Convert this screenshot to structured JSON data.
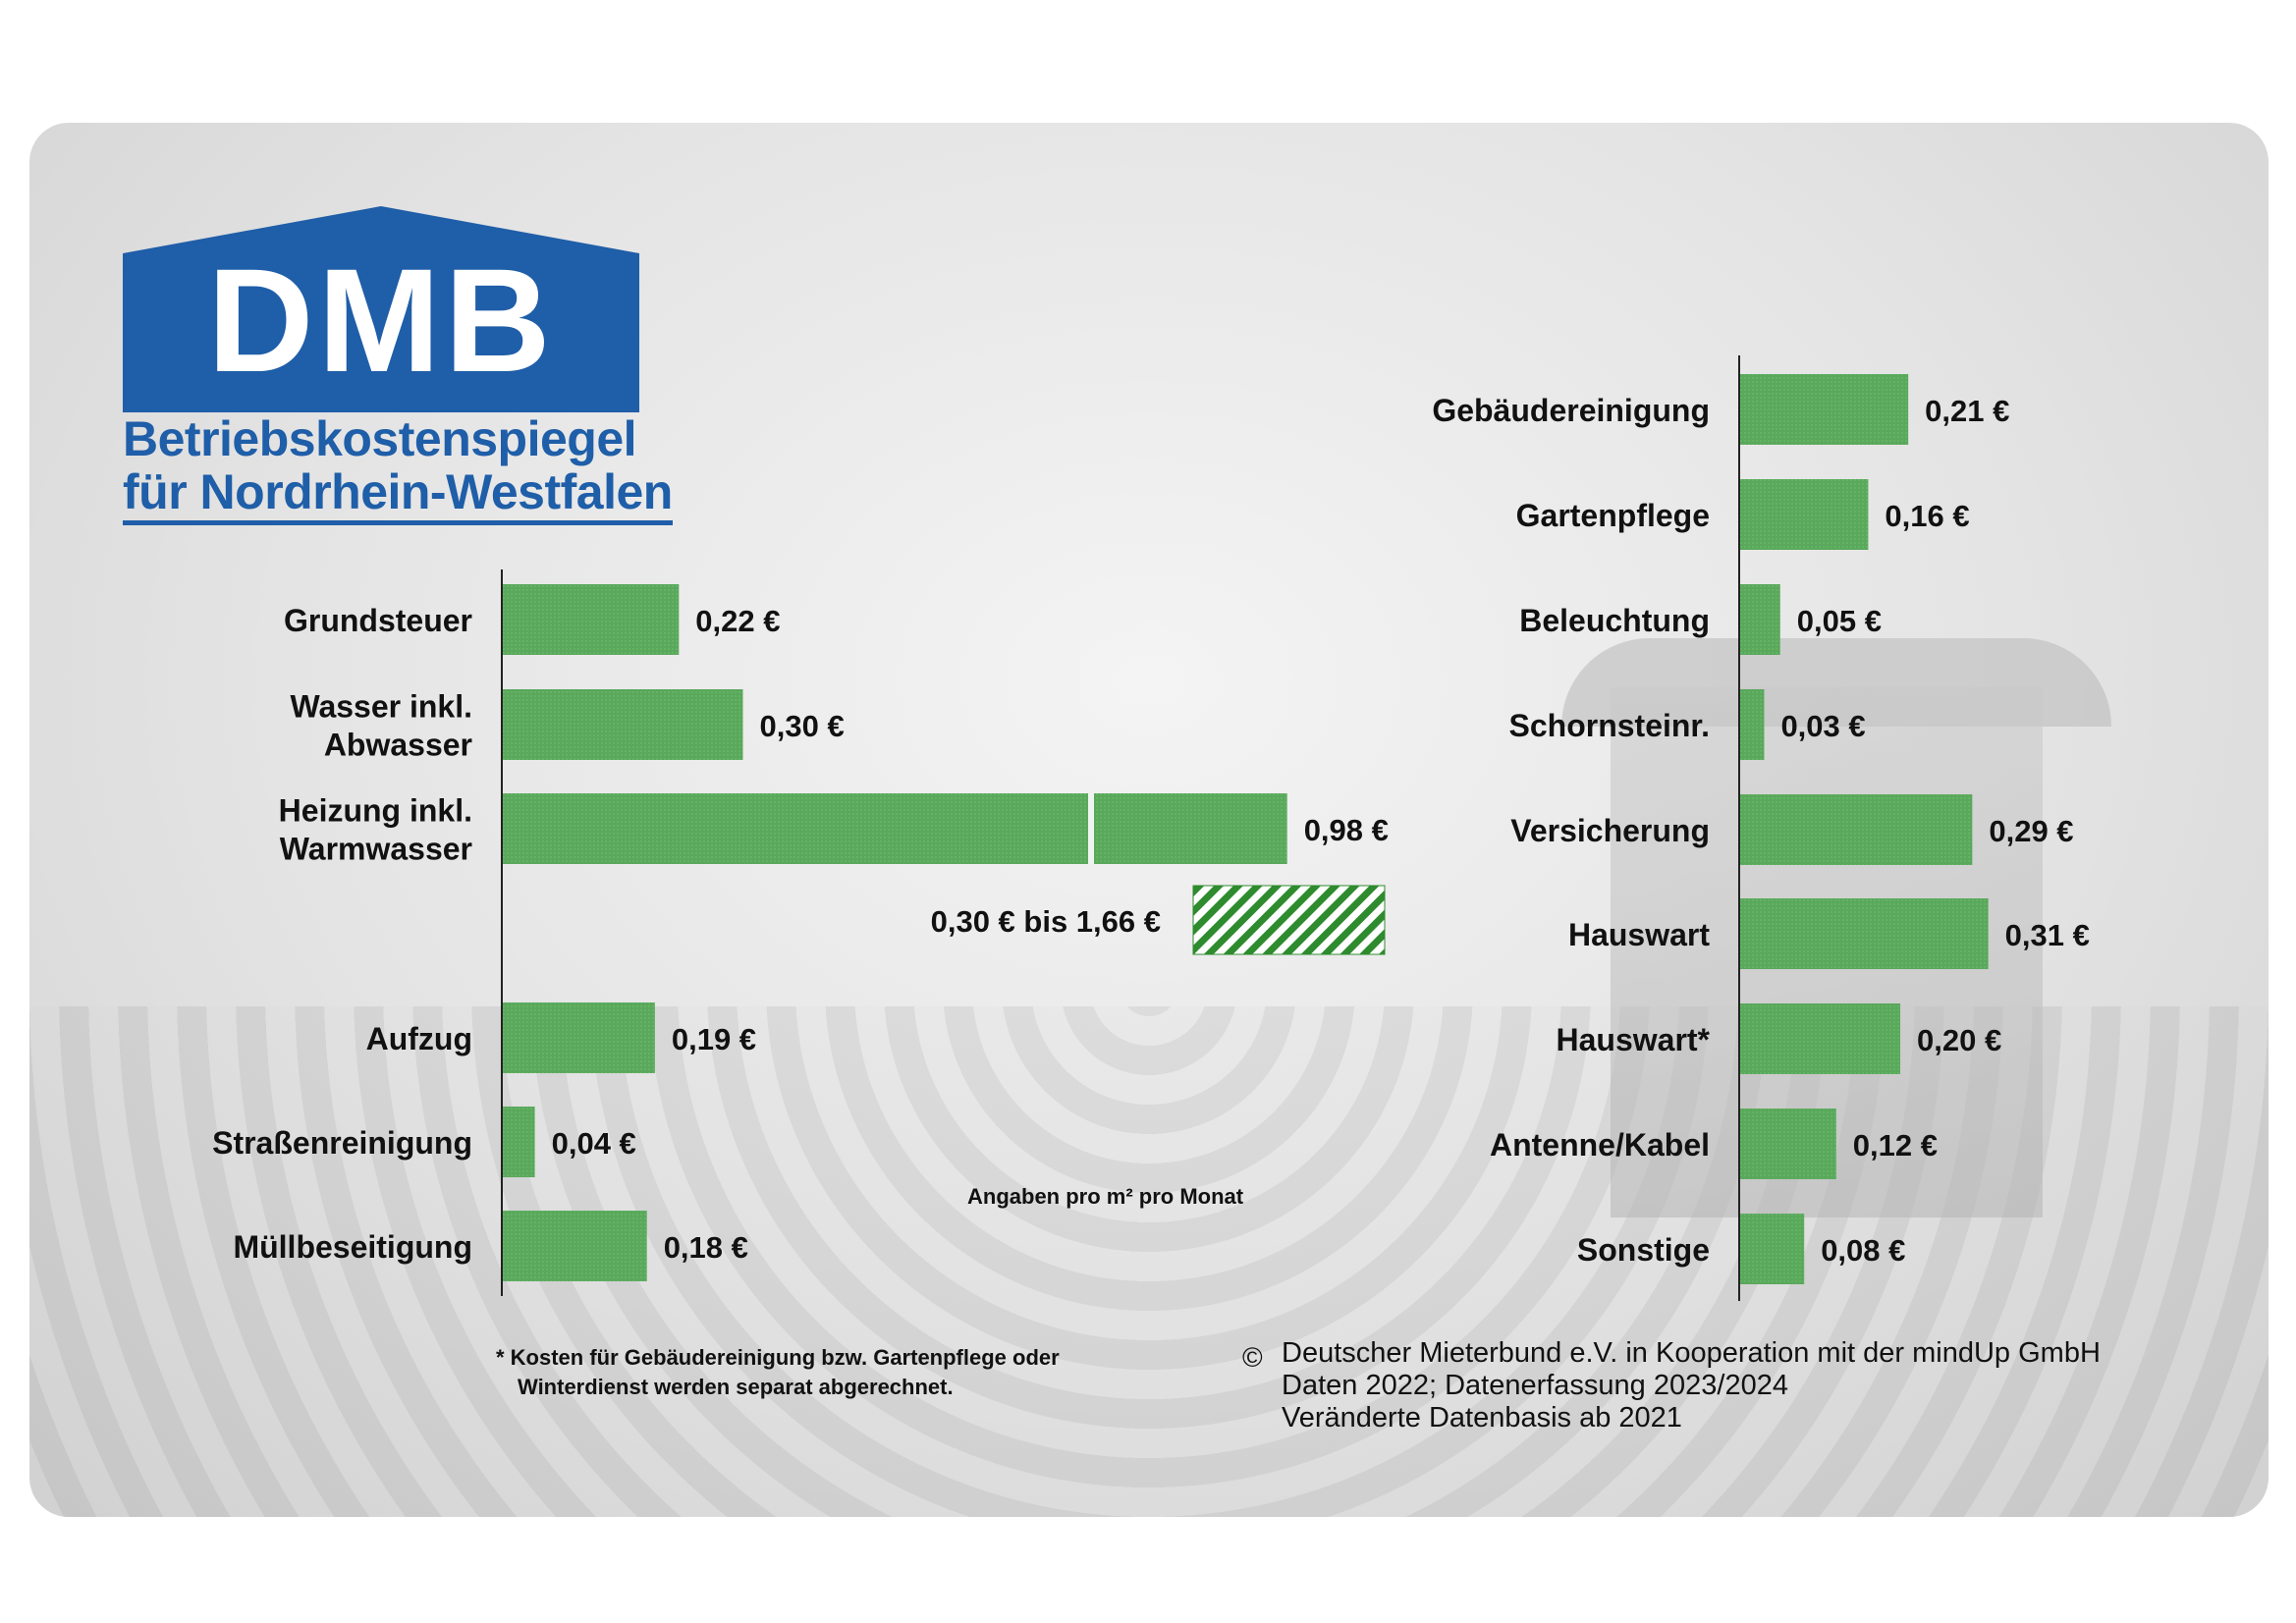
{
  "logo": {
    "wordmark": "DMB",
    "subtitle_line1": "Betriebskostenspiegel",
    "subtitle_line2": "für Nordrhein-Westfalen",
    "color": "#1f5ea8"
  },
  "chart_data": [
    {
      "type": "bar",
      "orientation": "horizontal",
      "panel": "left",
      "categories": [
        [
          "Grundsteuer"
        ],
        [
          "Wasser inkl.",
          "Abwasser"
        ],
        [
          "Heizung inkl.",
          "Warmwasser"
        ],
        [
          "Aufzug"
        ],
        [
          "Straßenreinigung"
        ],
        [
          "Müllbeseitigung"
        ]
      ],
      "values": [
        0.22,
        0.3,
        0.98,
        0.19,
        0.04,
        0.18
      ],
      "value_labels": [
        "0,22 €",
        "0,30 €",
        "0,98 €",
        "0,19 €",
        "0,04 €",
        "0,18 €"
      ],
      "range_bar": {
        "label": "0,30 € bis 1,66 €",
        "from": 0.3,
        "to": 1.66
      },
      "bar_color": "#5aa85c",
      "hatch_color": "#2e8b2e"
    },
    {
      "type": "bar",
      "orientation": "horizontal",
      "panel": "right",
      "categories": [
        [
          "Gebäudereinigung"
        ],
        [
          "Gartenpflege"
        ],
        [
          "Beleuchtung"
        ],
        [
          "Schornsteinr."
        ],
        [
          "Versicherung"
        ],
        [
          "Hauswart"
        ],
        [
          "Hauswart*"
        ],
        [
          "Antenne/Kabel"
        ],
        [
          "Sonstige"
        ]
      ],
      "values": [
        0.21,
        0.16,
        0.05,
        0.03,
        0.29,
        0.31,
        0.2,
        0.12,
        0.08
      ],
      "value_labels": [
        "0,21 €",
        "0,16 €",
        "0,05 €",
        "0,03 €",
        "0,29 €",
        "0,31 €",
        "0,20 €",
        "0,12 €",
        "0,08 €"
      ],
      "bar_color": "#5aa85c"
    }
  ],
  "unit_note": "Angaben pro m² pro Monat",
  "footnote": {
    "line1": "* Kosten für Gebäudereinigung bzw. Gartenpflege oder",
    "line2": "Winterdienst werden separat abgerechnet."
  },
  "copyright": {
    "symbol": "©",
    "line1": "Deutscher Mieterbund e.V. in Kooperation mit der mindUp GmbH",
    "line2": "Daten 2022; Datenerfassung 2023/2024",
    "line3": "Veränderte Datenbasis ab 2021"
  }
}
